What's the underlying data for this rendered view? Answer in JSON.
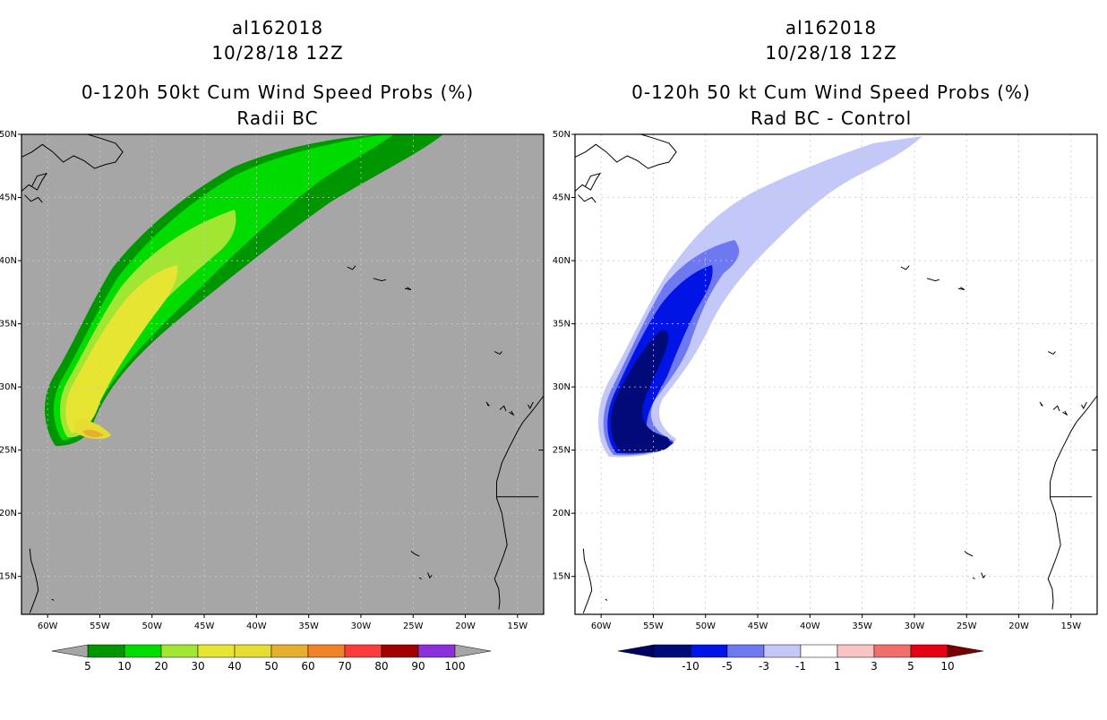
{
  "chart_data": [
    {
      "type": "heatmap",
      "title": [
        "al162018",
        "10/28/18 12Z",
        "0-120h 50kt Cum Wind Speed Probs (%)",
        "Radii BC"
      ],
      "x_ticks": [
        "60W",
        "55W",
        "50W",
        "45W",
        "40W",
        "35W",
        "30W",
        "25W",
        "20W",
        "15W"
      ],
      "y_ticks": [
        "15N",
        "20N",
        "25N",
        "30N",
        "35N",
        "40N",
        "45N",
        "50N"
      ],
      "xlim_deg_lon": [
        -62.5,
        -12.5
      ],
      "ylim_deg_lat": [
        12,
        50
      ],
      "grid": true,
      "colorbar": {
        "labels": [
          "5",
          "10",
          "20",
          "30",
          "40",
          "50",
          "60",
          "70",
          "80",
          "90",
          "100"
        ],
        "colors": [
          "#009600",
          "#00dc00",
          "#a0e632",
          "#e6e632",
          "#e6dc32",
          "#e6af2d",
          "#f08228",
          "#fa3c3c",
          "#a00000",
          "#8c30dc"
        ],
        "end_color": "#a6a6a6"
      },
      "background": "#a6a6a6"
    },
    {
      "type": "heatmap",
      "title": [
        "al162018",
        "10/28/18 12Z",
        "0-120h 50 kt Cum Wind Speed Probs (%)",
        "Rad BC - Control"
      ],
      "x_ticks": [
        "60W",
        "55W",
        "50W",
        "45W",
        "40W",
        "35W",
        "30W",
        "25W",
        "20W",
        "15W"
      ],
      "y_ticks": [
        "15N",
        "20N",
        "25N",
        "30N",
        "35N",
        "40N",
        "45N",
        "50N"
      ],
      "xlim_deg_lon": [
        -62.5,
        -12.5
      ],
      "ylim_deg_lat": [
        12,
        50
      ],
      "grid": true,
      "colorbar": {
        "labels": [
          "-10",
          "-5",
          "-3",
          "-1",
          "1",
          "3",
          "5",
          "10"
        ],
        "colors": [
          "#000a78",
          "#0014e6",
          "#6e78f0",
          "#c4c8f8",
          "#ffffff",
          "#f8c4c4",
          "#f06e6e",
          "#e60014"
        ],
        "end_colors": [
          "#000064",
          "#780000"
        ]
      },
      "background": "#ffffff"
    }
  ]
}
